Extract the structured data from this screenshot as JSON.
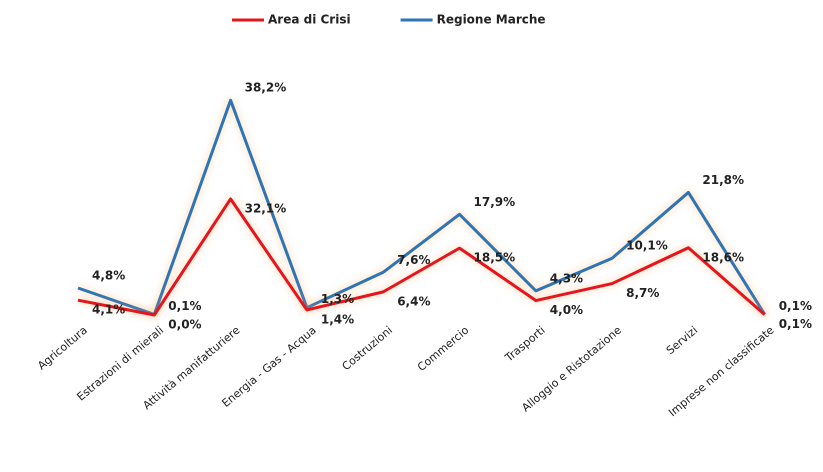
{
  "chart_data": {
    "type": "line",
    "categories": [
      "Agricoltura",
      "Estrazioni di mierali",
      "Attività manifatturiere",
      "Energia - Gas - Acqua",
      "Costruzioni",
      "Commercio",
      "Trasporti",
      "Alloggio e Ristotazione",
      "Servizi",
      "Imprese non classificate"
    ],
    "series": [
      {
        "name": "Area di Crisi",
        "color": "#e8141c",
        "axis": "y2",
        "values": [
          4.1,
          0.0,
          32.1,
          1.4,
          6.4,
          18.5,
          4.0,
          8.7,
          18.6,
          0.1
        ],
        "value_labels": [
          "4,1%",
          "0,0%",
          "32,1%",
          "1,4%",
          "6,4%",
          "18,5%",
          "4,0%",
          "8,7%",
          "18,6%",
          "0,1%"
        ]
      },
      {
        "name": "Regione Marche",
        "color": "#2e75b6",
        "values": [
          4.8,
          0.1,
          38.2,
          1.3,
          7.6,
          17.9,
          4.3,
          10.1,
          21.8,
          0.1
        ],
        "value_labels": [
          "4,8%",
          "0,1%",
          "38,2%",
          "1,3%",
          "7,6%",
          "17,9%",
          "4,3%",
          "10,1%",
          "21,8%",
          "0,1%"
        ]
      }
    ],
    "ylim": [
      0,
      45
    ],
    "y2lim": [
      0,
      70
    ],
    "legend": "top"
  }
}
